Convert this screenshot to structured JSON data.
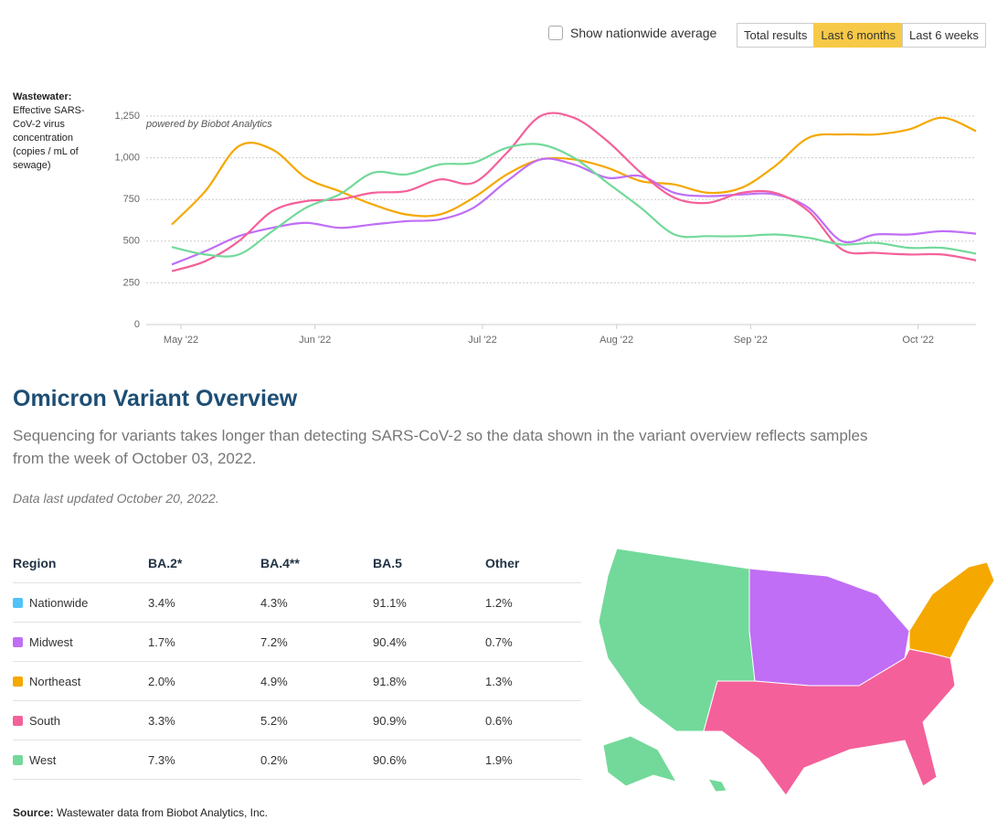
{
  "controls": {
    "checkbox": "Show nationwide average",
    "buttons": [
      "Total results",
      "Last 6 months",
      "Last 6 weeks"
    ],
    "active": 1
  },
  "chart_data": {
    "type": "line",
    "y_label_title": "Wastewater:",
    "y_label": "Effective SARS-CoV-2 virus concentration (copies / mL of sewage)",
    "annotation": "powered by Biobot Analytics",
    "categories": [
      "May '22",
      null,
      null,
      null,
      "Jun '22",
      null,
      null,
      null,
      null,
      "Jul '22",
      null,
      null,
      null,
      "Aug '22",
      null,
      null,
      null,
      "Sep '22",
      null,
      null,
      null,
      null,
      "Oct '22",
      null,
      null
    ],
    "ylim": [
      0,
      1250
    ],
    "yticks": [
      0,
      250,
      500,
      750,
      {
        "value": 1000,
        "label": "1,000"
      },
      {
        "value": 1250,
        "label": "1,250"
      }
    ],
    "grid": true,
    "series": [
      {
        "color": "#f5a800",
        "values": [
          600,
          800,
          1070,
          1050,
          880,
          800,
          720,
          660,
          660,
          760,
          900,
          990,
          990,
          940,
          860,
          840,
          790,
          820,
          950,
          1120,
          1140,
          1140,
          1170,
          1240,
          1160
        ]
      },
      {
        "color": "#c06ef5",
        "values": [
          360,
          440,
          530,
          580,
          610,
          580,
          600,
          620,
          630,
          700,
          860,
          990,
          960,
          880,
          890,
          790,
          770,
          780,
          780,
          700,
          500,
          540,
          540,
          560,
          545
        ]
      },
      {
        "color": "#f4609a",
        "values": [
          320,
          380,
          500,
          680,
          740,
          750,
          790,
          800,
          870,
          850,
          1030,
          1250,
          1240,
          1100,
          910,
          760,
          730,
          790,
          790,
          680,
          450,
          430,
          420,
          420,
          385
        ]
      },
      {
        "color": "#72d99a",
        "values": [
          465,
          420,
          420,
          560,
          700,
          780,
          910,
          900,
          960,
          970,
          1060,
          1080,
          1000,
          850,
          700,
          540,
          530,
          530,
          540,
          520,
          480,
          490,
          460,
          460,
          425
        ]
      }
    ]
  },
  "section": {
    "title": "Omicron Variant Overview",
    "subtitle": "Sequencing for variants takes longer than detecting SARS-CoV-2 so the data shown in the variant overview reflects samples from the week of October 03, 2022.",
    "updated": "Data last updated October 20, 2022."
  },
  "table": {
    "header": [
      "Region",
      "BA.2*",
      "BA.4**",
      "BA.5",
      "Other"
    ],
    "colors": [
      "#4fc3f7",
      "#c06ef5",
      "#f5a800",
      "#f4609a",
      "#72d99a"
    ],
    "rows": [
      [
        "Nationwide",
        "3.4%",
        "4.3%",
        "91.1%",
        "1.2%"
      ],
      [
        "Midwest",
        "1.7%",
        "7.2%",
        "90.4%",
        "0.7%"
      ],
      [
        "Northeast",
        "2.0%",
        "4.9%",
        "91.8%",
        "1.3%"
      ],
      [
        "South",
        "3.3%",
        "5.2%",
        "90.9%",
        "0.6%"
      ],
      [
        "West",
        "7.3%",
        "0.2%",
        "90.6%",
        "1.9%"
      ]
    ]
  },
  "source": {
    "label": "Source:",
    "text": "Wastewater data from Biobot Analytics, Inc."
  }
}
